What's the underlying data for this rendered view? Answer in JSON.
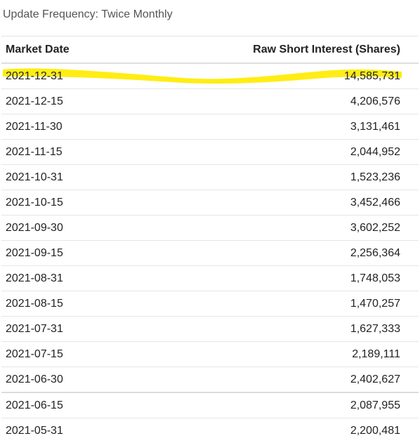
{
  "update_frequency": "Update Frequency: Twice Monthly",
  "table": {
    "headers": {
      "market_date": "Market Date",
      "raw_short_interest": "Raw Short Interest (Shares)"
    },
    "rows": [
      {
        "date": "2021-12-31",
        "value": "14,585,731"
      },
      {
        "date": "2021-12-15",
        "value": "4,206,576"
      },
      {
        "date": "2021-11-30",
        "value": "3,131,461"
      },
      {
        "date": "2021-11-15",
        "value": "2,044,952"
      },
      {
        "date": "2021-10-31",
        "value": "1,523,236"
      },
      {
        "date": "2021-10-15",
        "value": "3,452,466"
      },
      {
        "date": "2021-09-30",
        "value": "3,602,252"
      },
      {
        "date": "2021-09-15",
        "value": "2,256,364"
      },
      {
        "date": "2021-08-31",
        "value": "1,748,053"
      },
      {
        "date": "2021-08-15",
        "value": "1,470,257"
      },
      {
        "date": "2021-07-31",
        "value": "1,627,333"
      },
      {
        "date": "2021-07-15",
        "value": "2,189,111"
      },
      {
        "date": "2021-06-30",
        "value": "2,402,627"
      },
      {
        "date": "2021-06-15",
        "value": "2,087,955"
      },
      {
        "date": "2021-05-31",
        "value": "2,200,481"
      }
    ]
  },
  "colors": {
    "highlighter": "#ffeb00"
  }
}
